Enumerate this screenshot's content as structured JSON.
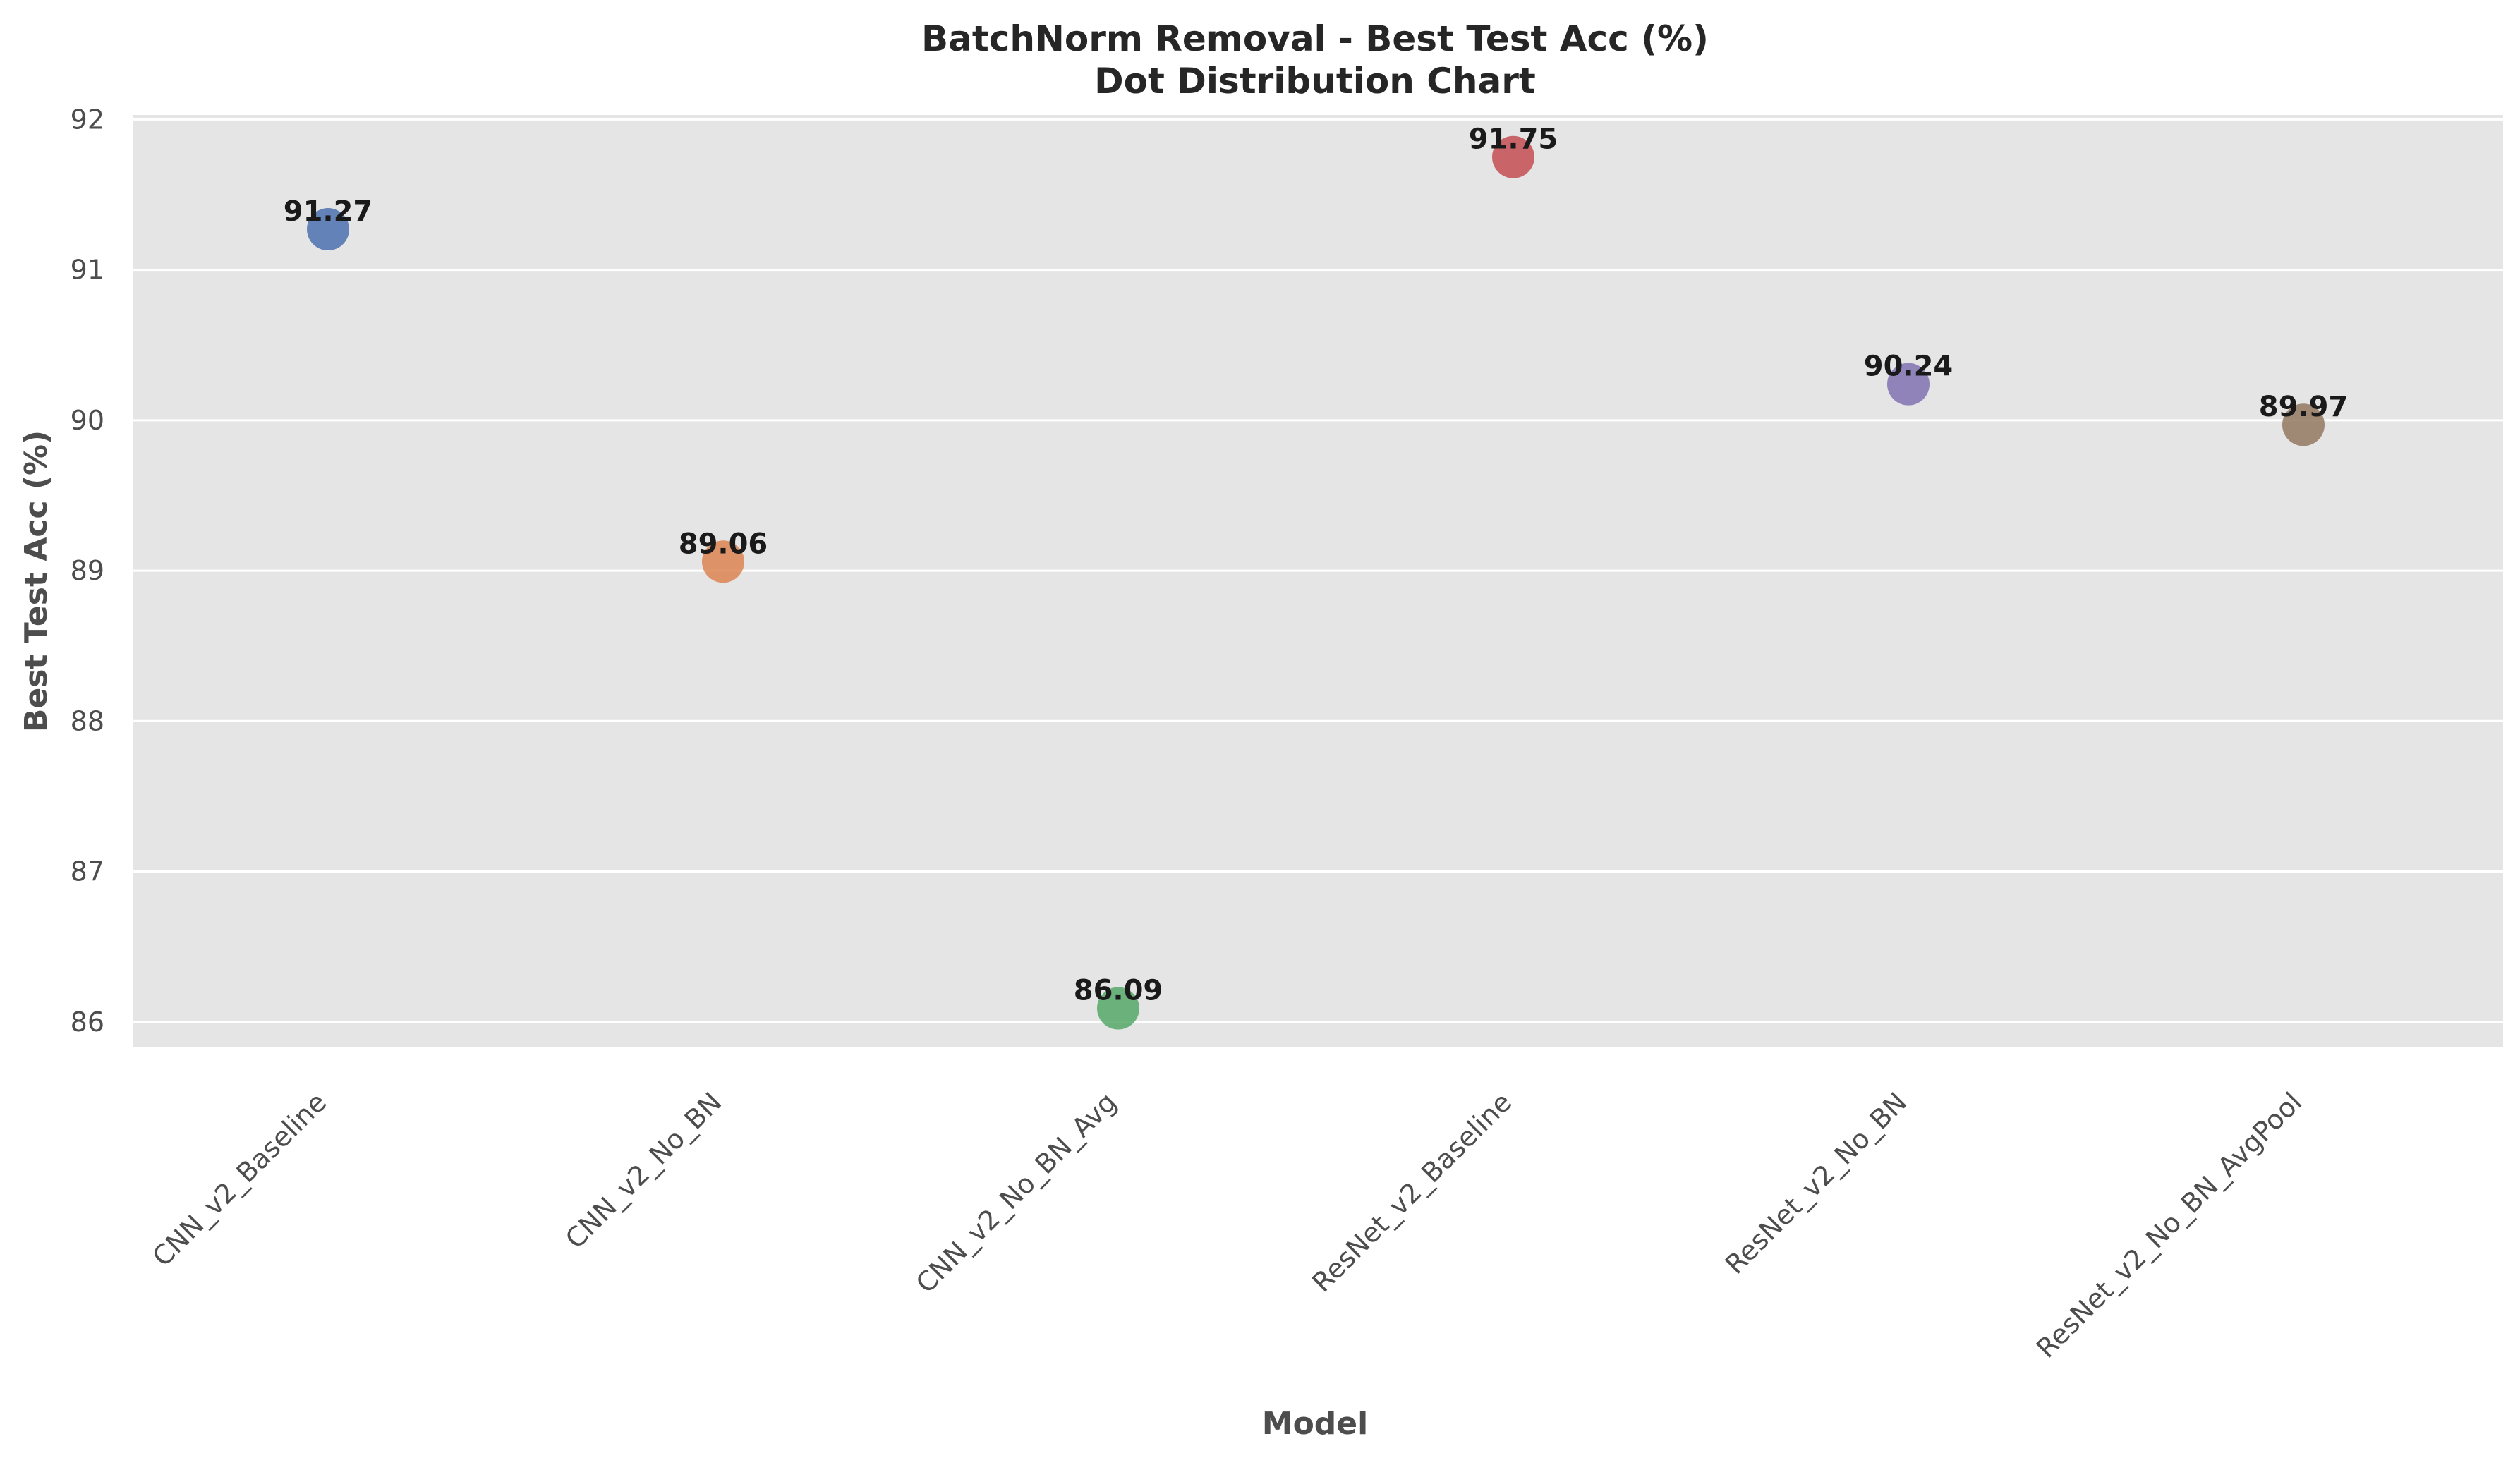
{
  "chart_data": {
    "type": "scatter",
    "title": "BatchNorm Removal - Best Test Acc (%)",
    "subtitle": "Dot Distribution Chart",
    "xlabel": "Model",
    "ylabel": "Best Test Acc (%)",
    "ylim": [
      85.83,
      92.03
    ],
    "yticks": [
      86,
      87,
      88,
      89,
      90,
      91,
      92
    ],
    "grid": true,
    "legend": "none",
    "categories": [
      "CNN_v2_Baseline",
      "CNN_v2_No_BN",
      "CNN_v2_No_BN_Avg",
      "ResNet_v2_Baseline",
      "ResNet_v2_No_BN",
      "ResNet_v2_No_BN_AvgPool"
    ],
    "values": [
      91.27,
      89.06,
      86.09,
      91.75,
      90.24,
      89.97
    ],
    "data_labels": [
      "91.27",
      "89.06",
      "86.09",
      "91.75",
      "90.24",
      "89.97"
    ],
    "colors": [
      "#4c72b0",
      "#dd8452",
      "#55a868",
      "#c44e52",
      "#8172b3",
      "#937860"
    ],
    "background_color": "#e5e5e5",
    "grid_color": "#ffffff"
  }
}
